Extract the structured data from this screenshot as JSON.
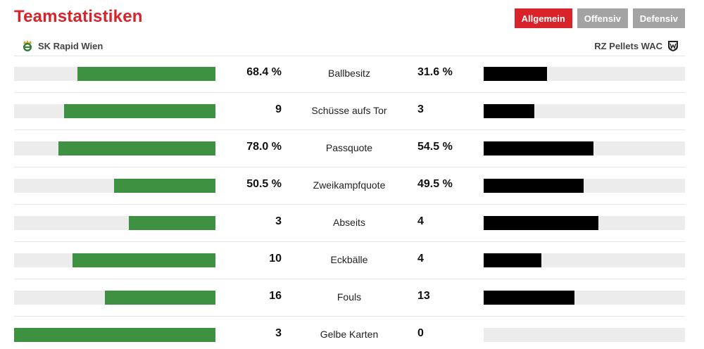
{
  "title": "Teamstatistiken",
  "tabs": [
    {
      "label": "Allgemein",
      "active": true
    },
    {
      "label": "Offensiv",
      "active": false
    },
    {
      "label": "Defensiv",
      "active": false
    }
  ],
  "teams": {
    "home": {
      "name": "SK Rapid Wien",
      "icon": "rapid-crest-icon",
      "color": "#3e9140"
    },
    "away": {
      "name": "RZ Pellets WAC",
      "icon": "wac-crest-icon",
      "color": "#000000"
    }
  },
  "colors": {
    "accent": "#d8232a",
    "tab_inactive": "#a3a3a3",
    "track": "#ececec"
  },
  "stats": [
    {
      "label": "Ballbesitz",
      "home": "68.4 %",
      "away": "31.6 %",
      "home_share": 0.684,
      "away_share": 0.316
    },
    {
      "label": "Schüsse aufs Tor",
      "home": "9",
      "away": "3",
      "home_share": 0.75,
      "away_share": 0.25
    },
    {
      "label": "Passquote",
      "home": "78.0 %",
      "away": "54.5 %",
      "home_share": 0.78,
      "away_share": 0.545
    },
    {
      "label": "Zweikampfquote",
      "home": "50.5 %",
      "away": "49.5 %",
      "home_share": 0.505,
      "away_share": 0.495
    },
    {
      "label": "Abseits",
      "home": "3",
      "away": "4",
      "home_share": 0.43,
      "away_share": 0.57
    },
    {
      "label": "Eckbälle",
      "home": "10",
      "away": "4",
      "home_share": 0.71,
      "away_share": 0.285
    },
    {
      "label": "Fouls",
      "home": "16",
      "away": "13",
      "home_share": 0.55,
      "away_share": 0.45
    },
    {
      "label": "Gelbe Karten",
      "home": "3",
      "away": "0",
      "home_share": 1.0,
      "away_share": 0.0
    }
  ]
}
